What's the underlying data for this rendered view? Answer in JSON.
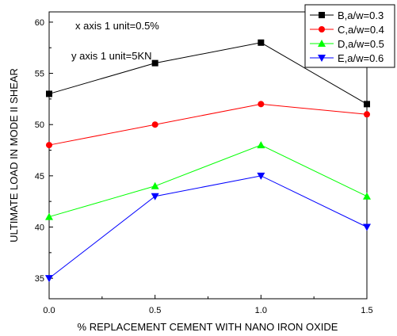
{
  "chart_data": {
    "type": "line",
    "title": "",
    "xlabel": "% REPLACEMENT CEMENT WITH NANO IRON OXIDE",
    "ylabel": "ULTIMATE LOAD IN MODE II SHEAR",
    "x": [
      0.0,
      0.5,
      1.0,
      1.5
    ],
    "xlim": [
      0.0,
      1.5
    ],
    "ylim": [
      33,
      61
    ],
    "xticks": [
      "0.0",
      "0.5",
      "1.0",
      "1.5"
    ],
    "yticks": [
      "35",
      "40",
      "45",
      "50",
      "55",
      "60"
    ],
    "annotations": [
      "x axis 1 unit=0.5%",
      "y axis 1 unit=5KN"
    ],
    "legend_position": "top-right",
    "grid": false,
    "series": [
      {
        "name": "B,a/w=0.3",
        "values": [
          53,
          56,
          58,
          52
        ],
        "color": "#000000",
        "marker": "square"
      },
      {
        "name": "C,a/w=0.4",
        "values": [
          48,
          50,
          52,
          51
        ],
        "color": "#ff0000",
        "marker": "circle"
      },
      {
        "name": "D,a/w=0.5",
        "values": [
          41,
          44,
          48,
          43
        ],
        "color": "#00ff00",
        "marker": "triangle-up"
      },
      {
        "name": "E,a/w=0.6",
        "values": [
          35,
          43,
          45,
          40
        ],
        "color": "#0000ff",
        "marker": "triangle-down"
      }
    ]
  }
}
